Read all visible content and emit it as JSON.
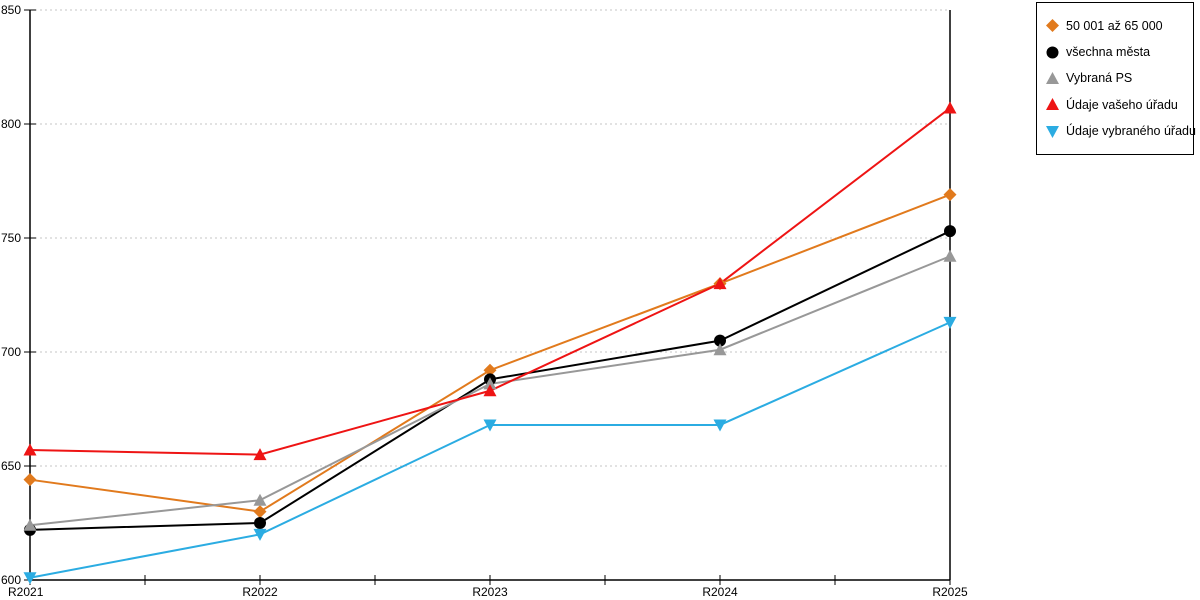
{
  "chart_data": {
    "type": "line",
    "title": "",
    "xlabel": "",
    "ylabel": "",
    "categories": [
      "R2021",
      "R2022",
      "R2023",
      "R2024",
      "R2025"
    ],
    "series": [
      {
        "name": "50 001 až 65 000",
        "marker": "diamond",
        "color": "#E17A1D",
        "values": [
          644,
          630,
          692,
          730,
          769
        ]
      },
      {
        "name": "všechna města",
        "marker": "circle",
        "color": "#000000",
        "values": [
          622,
          625,
          688,
          705,
          753
        ]
      },
      {
        "name": "Vybraná PS",
        "marker": "triangle-up",
        "color": "#989898",
        "values": [
          624,
          635,
          686,
          701,
          742
        ]
      },
      {
        "name": "Údaje vašeho úřadu",
        "marker": "triangle-up",
        "color": "#EE1414",
        "values": [
          657,
          655,
          683,
          730,
          807
        ]
      },
      {
        "name": "Údaje vybraného úřadu",
        "marker": "triangle-down",
        "color": "#2BACE2",
        "values": [
          601,
          620,
          668,
          668,
          713
        ]
      }
    ],
    "yticks": [
      "600",
      "650",
      "700",
      "750",
      "800",
      "850"
    ],
    "ylim": [
      600,
      850
    ],
    "grid": "horizontal-dotted",
    "grid_color": "#C6C6C6",
    "axis_color": "#000000",
    "legend_position": "top-right"
  }
}
